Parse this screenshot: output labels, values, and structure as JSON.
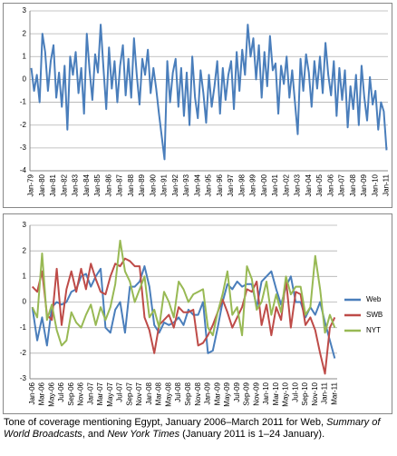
{
  "chart_data": [
    {
      "type": "line",
      "color": "#4a7ebb",
      "ylim": [
        -4,
        3
      ],
      "yticks": [
        -4,
        -3,
        -2,
        -1,
        0,
        1,
        2,
        3
      ],
      "grid": true,
      "categories": [
        "Jan-79",
        null,
        null,
        null,
        "Jan-80",
        null,
        null,
        null,
        "Jan-81",
        null,
        null,
        null,
        "Jan-82",
        null,
        null,
        null,
        "Jan-83",
        null,
        null,
        null,
        "Jan-84",
        null,
        null,
        null,
        "Jan-85",
        null,
        null,
        null,
        "Jan-86",
        null,
        null,
        null,
        "Jan-87",
        null,
        null,
        null,
        "Jan-88",
        null,
        null,
        null,
        "Jan-89",
        null,
        null,
        null,
        "Jan-90",
        null,
        null,
        null,
        "Jan-91",
        null,
        null,
        null,
        "Jan-92",
        null,
        null,
        null,
        "Jan-93",
        null,
        null,
        null,
        "Jan-94",
        null,
        null,
        null,
        "Jan-95",
        null,
        null,
        null,
        "Jan-96",
        null,
        null,
        null,
        "Jan-97",
        null,
        null,
        null,
        "Jan-98",
        null,
        null,
        null,
        "Jan-99",
        null,
        null,
        null,
        "Jan-00",
        null,
        null,
        null,
        "Jan-01",
        null,
        null,
        null,
        "Jan-02",
        null,
        null,
        null,
        "Jan-03",
        null,
        null,
        null,
        "Jan-04",
        null,
        null,
        null,
        "Jan-05",
        null,
        null,
        null,
        "Jan-06",
        null,
        null,
        null,
        "Jan-07",
        null,
        null,
        null,
        "Jan-08",
        null,
        null,
        null,
        "Jan-09",
        null,
        null,
        null,
        "Jan-10",
        null,
        null,
        null,
        "Jan-11"
      ],
      "values": [
        0.5,
        -0.5,
        0.2,
        -1,
        2.0,
        1.2,
        -0.5,
        0.8,
        1.5,
        -0.8,
        0.3,
        -1.2,
        0.6,
        -2.2,
        1.0,
        0.2,
        1.2,
        -0.6,
        0.5,
        -1.5,
        2.0,
        0.4,
        -0.9,
        1.1,
        0.3,
        2.4,
        0.5,
        -1.3,
        1.4,
        -0.4,
        0.8,
        -1.0,
        0.6,
        1.5,
        -0.7,
        0.9,
        -0.8,
        1.8,
        0.2,
        -1.1,
        0.9,
        0.2,
        1.3,
        -0.6,
        0.5,
        -0.4,
        -1.5,
        -2.5,
        -3.5,
        0.8,
        -1.0,
        0.3,
        0.9,
        -1.2,
        0.5,
        -1.6,
        0.3,
        -2.0,
        1.0,
        -0.8,
        -1.7,
        0.4,
        -0.6,
        -1.9,
        0.2,
        -1.2,
        -0.3,
        0.8,
        -1.5,
        0.5,
        -0.9,
        0.2,
        0.8,
        -1.3,
        1.2,
        -0.5,
        1.3,
        0.2,
        2.4,
        1.0,
        1.8,
        0.0,
        1.5,
        -0.8,
        1.2,
        -0.3,
        1.9,
        0.4,
        0.7,
        -1.5,
        0.6,
        -0.2,
        1.0,
        -0.8,
        0.4,
        -1.0,
        -2.4,
        0.9,
        -0.5,
        1.1,
        0.3,
        -1.2,
        0.8,
        -0.4,
        1.0,
        -0.6,
        1.6,
        0.2,
        -0.7,
        0.8,
        -1.6,
        0.5,
        -0.9,
        0.4,
        -2.1,
        -0.3,
        -1.3,
        0.2,
        -2.0,
        0.6,
        -0.8,
        -1.8,
        0.1,
        -1.1,
        -0.5,
        -2.2,
        -1.0,
        -1.4,
        -3.1
      ]
    },
    {
      "type": "line",
      "ylim": [
        -3,
        3
      ],
      "yticks": [
        -3,
        -2,
        -1,
        0,
        1,
        2,
        3
      ],
      "grid": true,
      "legend": "right",
      "categories": [
        "Jan-06",
        null,
        "Mar-06",
        null,
        "May-06",
        null,
        "Jul-06",
        null,
        "Sep-06",
        null,
        "Nov-06",
        null,
        "Jan-07",
        null,
        "Mar-07",
        null,
        "May-07",
        null,
        "Jul-07",
        null,
        "Sep-07",
        null,
        "Nov-07",
        null,
        "Jan-08",
        null,
        "Mar-08",
        null,
        "May-08",
        null,
        "Jul-08",
        null,
        "Sep-08",
        null,
        "Nov-08",
        null,
        "Jan-09",
        null,
        "Mar-09",
        null,
        "May-09",
        null,
        "Jul-09",
        null,
        "Sep-09",
        null,
        "Nov-09",
        null,
        "Jan-10",
        null,
        "Mar-10",
        null,
        "May-10",
        null,
        "Jul-10",
        null,
        "Sep-10",
        null,
        "Nov-10",
        null,
        "Jan-11",
        null,
        "Mar-11"
      ],
      "series": [
        {
          "name": "Web",
          "color": "#4a7ebb",
          "values": [
            -0.2,
            -1.5,
            -0.6,
            -1.7,
            -0.2,
            0.0,
            -0.1,
            0.0,
            0.4,
            0.5,
            1.0,
            1.1,
            0.6,
            1.0,
            1.3,
            -1.0,
            -1.2,
            -0.3,
            0.0,
            -1.2,
            0.6,
            0.6,
            0.8,
            1.4,
            0.6,
            -0.9,
            -1.2,
            -0.8,
            -0.9,
            -0.8,
            -0.6,
            -0.9,
            -0.3,
            -0.5,
            -0.5,
            0.0,
            -2.0,
            -1.9,
            -1.0,
            0.0,
            0.7,
            0.5,
            0.8,
            0.6,
            0.7,
            0.7,
            -0.2,
            0.8,
            1.0,
            1.2,
            0.5,
            -0.1,
            0.6,
            1.0,
            0.0,
            0.0,
            -0.6,
            -0.2,
            -0.5,
            0.0,
            -0.8,
            -1.5,
            -2.2
          ]
        },
        {
          "name": "SWB",
          "color": "#be4b48",
          "values": [
            0.6,
            0.4,
            1.2,
            -0.5,
            -0.7,
            1.3,
            -0.9,
            0.5,
            1.2,
            0.4,
            1.3,
            0.5,
            1.5,
            0.9,
            0.4,
            0.3,
            1.0,
            1.5,
            1.4,
            1.7,
            1.6,
            1.4,
            1.4,
            -0.6,
            -1.1,
            -2.0,
            -0.9,
            -0.7,
            -0.5,
            -1.0,
            -0.2,
            -0.4,
            -0.4,
            -0.3,
            -1.7,
            -1.6,
            -1.3,
            -0.9,
            -0.4,
            0.1,
            -0.4,
            -1.0,
            -0.6,
            -0.2,
            0.5,
            0.4,
            0.8,
            -0.9,
            -0.1,
            -1.3,
            -0.2,
            -0.7,
            0.9,
            -1.0,
            0.4,
            0.3,
            -0.9,
            -0.6,
            -1.1,
            -2.0,
            -2.8,
            -1.0,
            -0.6
          ]
        },
        {
          "name": "NYT",
          "color": "#98b954",
          "values": [
            -0.2,
            -0.6,
            1.9,
            -0.7,
            -0.1,
            -1.1,
            -1.7,
            -1.5,
            -0.4,
            -0.8,
            -1.0,
            -0.5,
            -0.1,
            -0.9,
            -0.2,
            -0.7,
            -0.2,
            0.7,
            2.4,
            1.2,
            0.8,
            0.0,
            0.5,
            1.0,
            -0.6,
            -0.3,
            -1.0,
            0.4,
            0.0,
            -0.6,
            0.8,
            0.5,
            0.0,
            0.3,
            0.4,
            0.5,
            -1.0,
            -1.3,
            -0.4,
            0.3,
            1.2,
            -0.5,
            -0.2,
            -1.3,
            1.4,
            0.9,
            -0.3,
            0.0,
            0.8,
            -0.5,
            0.3,
            -0.4,
            1.0,
            0.3,
            0.6,
            0.6,
            -0.5,
            -0.2,
            1.8,
            0.5,
            -1.2,
            -0.5,
            -1.0
          ]
        }
      ]
    }
  ],
  "caption": {
    "parts": [
      "Tone of coverage mentioning Egypt, January 2006–March 2011 for Web, ",
      "Summary of World Broadcasts",
      ", and ",
      "New York Times",
      " (January 2011 is 1–24 January)."
    ]
  }
}
